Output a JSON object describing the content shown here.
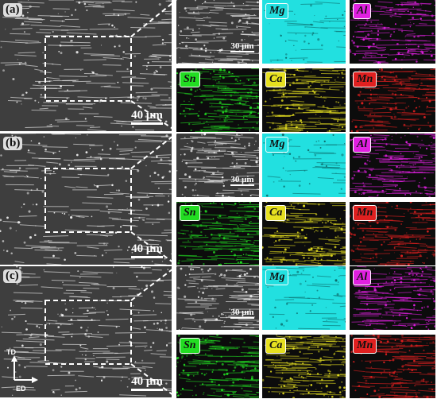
{
  "panels": [
    {
      "label": "(a)",
      "scale_main": "40 μm",
      "scale_zoom": "30 μm",
      "maps": [
        {
          "element": "Mg",
          "color": "#22e0e0"
        },
        {
          "element": "Al",
          "color": "#e020e0"
        },
        {
          "element": "Sn",
          "color": "#22dd22"
        },
        {
          "element": "Ca",
          "color": "#e6e020"
        },
        {
          "element": "Mn",
          "color": "#e02020"
        }
      ]
    },
    {
      "label": "(b)",
      "scale_main": "40 μm",
      "scale_zoom": "30 μm",
      "maps": [
        {
          "element": "Mg",
          "color": "#22e0e0"
        },
        {
          "element": "Al",
          "color": "#e020e0"
        },
        {
          "element": "Sn",
          "color": "#22dd22"
        },
        {
          "element": "Ca",
          "color": "#e6e020"
        },
        {
          "element": "Mn",
          "color": "#e02020"
        }
      ]
    },
    {
      "label": "(c)",
      "scale_main": "40 μm",
      "scale_zoom": "30 μm",
      "maps": [
        {
          "element": "Mg",
          "color": "#22e0e0"
        },
        {
          "element": "Al",
          "color": "#e020e0"
        },
        {
          "element": "Sn",
          "color": "#22dd22"
        },
        {
          "element": "Ca",
          "color": "#e6e020"
        },
        {
          "element": "Mn",
          "color": "#e02020"
        }
      ]
    }
  ],
  "axes": {
    "td": "TD",
    "ed": "ED"
  }
}
